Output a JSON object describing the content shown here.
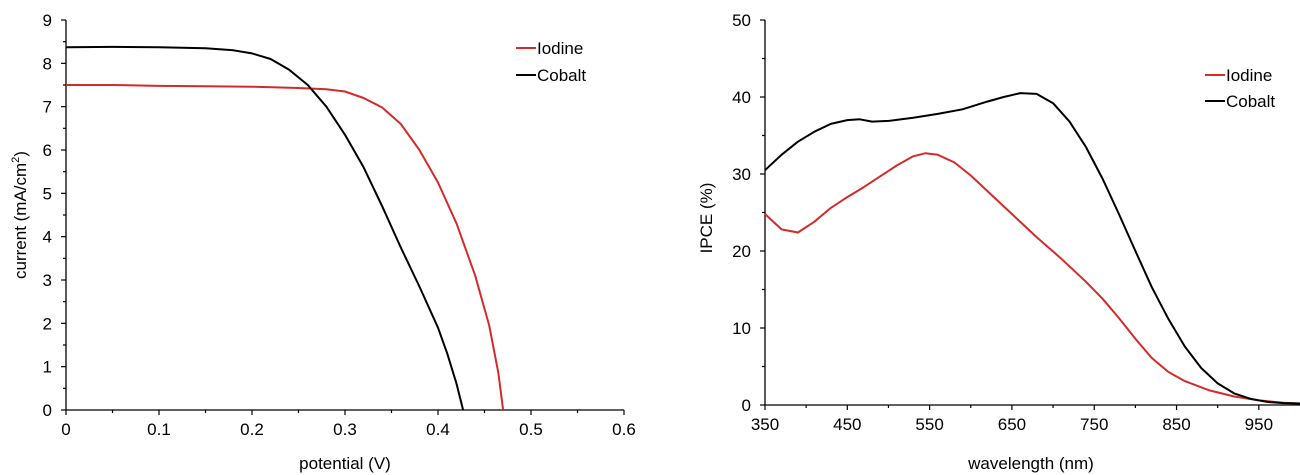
{
  "chart_data": [
    {
      "type": "line",
      "xlabel": "potential (V)",
      "ylabel_main": "current (mA/cm",
      "ylabel_sup": "2",
      "ylabel_end": ")",
      "xlim": [
        0,
        0.6
      ],
      "ylim": [
        0,
        9
      ],
      "xticks": [
        "0",
        "0.1",
        "0.2",
        "0.3",
        "0.4",
        "0.5",
        "0.6"
      ],
      "yticks": [
        "0",
        "1",
        "2",
        "3",
        "4",
        "5",
        "6",
        "7",
        "8",
        "9"
      ],
      "legend_position": "top-right",
      "series": [
        {
          "name": "Iodine",
          "color": "#d42a2a",
          "points": [
            [
              0,
              7.5
            ],
            [
              0.05,
              7.5
            ],
            [
              0.1,
              7.48
            ],
            [
              0.15,
              7.47
            ],
            [
              0.2,
              7.46
            ],
            [
              0.25,
              7.43
            ],
            [
              0.28,
              7.4
            ],
            [
              0.3,
              7.35
            ],
            [
              0.32,
              7.2
            ],
            [
              0.34,
              6.98
            ],
            [
              0.36,
              6.6
            ],
            [
              0.38,
              6.0
            ],
            [
              0.4,
              5.25
            ],
            [
              0.42,
              4.3
            ],
            [
              0.44,
              3.1
            ],
            [
              0.455,
              1.95
            ],
            [
              0.465,
              0.85
            ],
            [
              0.47,
              0
            ]
          ]
        },
        {
          "name": "Cobalt",
          "color": "#000000",
          "points": [
            [
              0,
              8.37
            ],
            [
              0.05,
              8.38
            ],
            [
              0.1,
              8.37
            ],
            [
              0.15,
              8.35
            ],
            [
              0.18,
              8.3
            ],
            [
              0.2,
              8.23
            ],
            [
              0.22,
              8.1
            ],
            [
              0.24,
              7.85
            ],
            [
              0.26,
              7.5
            ],
            [
              0.28,
              7.0
            ],
            [
              0.3,
              6.35
            ],
            [
              0.32,
              5.6
            ],
            [
              0.34,
              4.7
            ],
            [
              0.36,
              3.75
            ],
            [
              0.38,
              2.85
            ],
            [
              0.4,
              1.9
            ],
            [
              0.41,
              1.3
            ],
            [
              0.42,
              0.6
            ],
            [
              0.427,
              0
            ]
          ]
        }
      ]
    },
    {
      "type": "line",
      "xlabel": "wavelength (nm)",
      "ylabel": "IPCE (%)",
      "xlim": [
        350,
        1000
      ],
      "ylim": [
        0,
        50
      ],
      "xticks": [
        "350",
        "450",
        "550",
        "650",
        "750",
        "850",
        "950"
      ],
      "xtick_values": [
        350,
        450,
        550,
        650,
        750,
        850,
        950
      ],
      "yticks": [
        "0",
        "10",
        "20",
        "30",
        "40",
        "50"
      ],
      "legend_position": "top-right",
      "series": [
        {
          "name": "Iodine",
          "color": "#d42a2a",
          "points": [
            [
              350,
              24.8
            ],
            [
              370,
              22.8
            ],
            [
              390,
              22.4
            ],
            [
              410,
              23.8
            ],
            [
              430,
              25.6
            ],
            [
              450,
              27.0
            ],
            [
              470,
              28.3
            ],
            [
              490,
              29.7
            ],
            [
              510,
              31.1
            ],
            [
              530,
              32.3
            ],
            [
              545,
              32.7
            ],
            [
              560,
              32.5
            ],
            [
              580,
              31.5
            ],
            [
              600,
              29.8
            ],
            [
              620,
              27.8
            ],
            [
              650,
              24.8
            ],
            [
              680,
              21.8
            ],
            [
              710,
              19.0
            ],
            [
              740,
              16.0
            ],
            [
              760,
              13.8
            ],
            [
              780,
              11.3
            ],
            [
              800,
              8.6
            ],
            [
              820,
              6.1
            ],
            [
              840,
              4.3
            ],
            [
              860,
              3.1
            ],
            [
              890,
              1.9
            ],
            [
              920,
              1.1
            ],
            [
              950,
              0.6
            ],
            [
              980,
              0.3
            ],
            [
              1000,
              0.2
            ]
          ]
        },
        {
          "name": "Cobalt",
          "color": "#000000",
          "points": [
            [
              350,
              30.5
            ],
            [
              370,
              32.5
            ],
            [
              390,
              34.2
            ],
            [
              410,
              35.5
            ],
            [
              430,
              36.5
            ],
            [
              450,
              37.0
            ],
            [
              465,
              37.1
            ],
            [
              480,
              36.8
            ],
            [
              500,
              36.9
            ],
            [
              530,
              37.3
            ],
            [
              560,
              37.8
            ],
            [
              590,
              38.4
            ],
            [
              620,
              39.4
            ],
            [
              640,
              40.0
            ],
            [
              660,
              40.5
            ],
            [
              680,
              40.4
            ],
            [
              700,
              39.2
            ],
            [
              720,
              36.8
            ],
            [
              740,
              33.5
            ],
            [
              760,
              29.4
            ],
            [
              780,
              24.8
            ],
            [
              800,
              20.0
            ],
            [
              820,
              15.3
            ],
            [
              840,
              11.2
            ],
            [
              860,
              7.6
            ],
            [
              880,
              4.8
            ],
            [
              900,
              2.8
            ],
            [
              920,
              1.5
            ],
            [
              940,
              0.8
            ],
            [
              960,
              0.4
            ],
            [
              980,
              0.25
            ],
            [
              1000,
              0.2
            ]
          ]
        }
      ]
    }
  ]
}
